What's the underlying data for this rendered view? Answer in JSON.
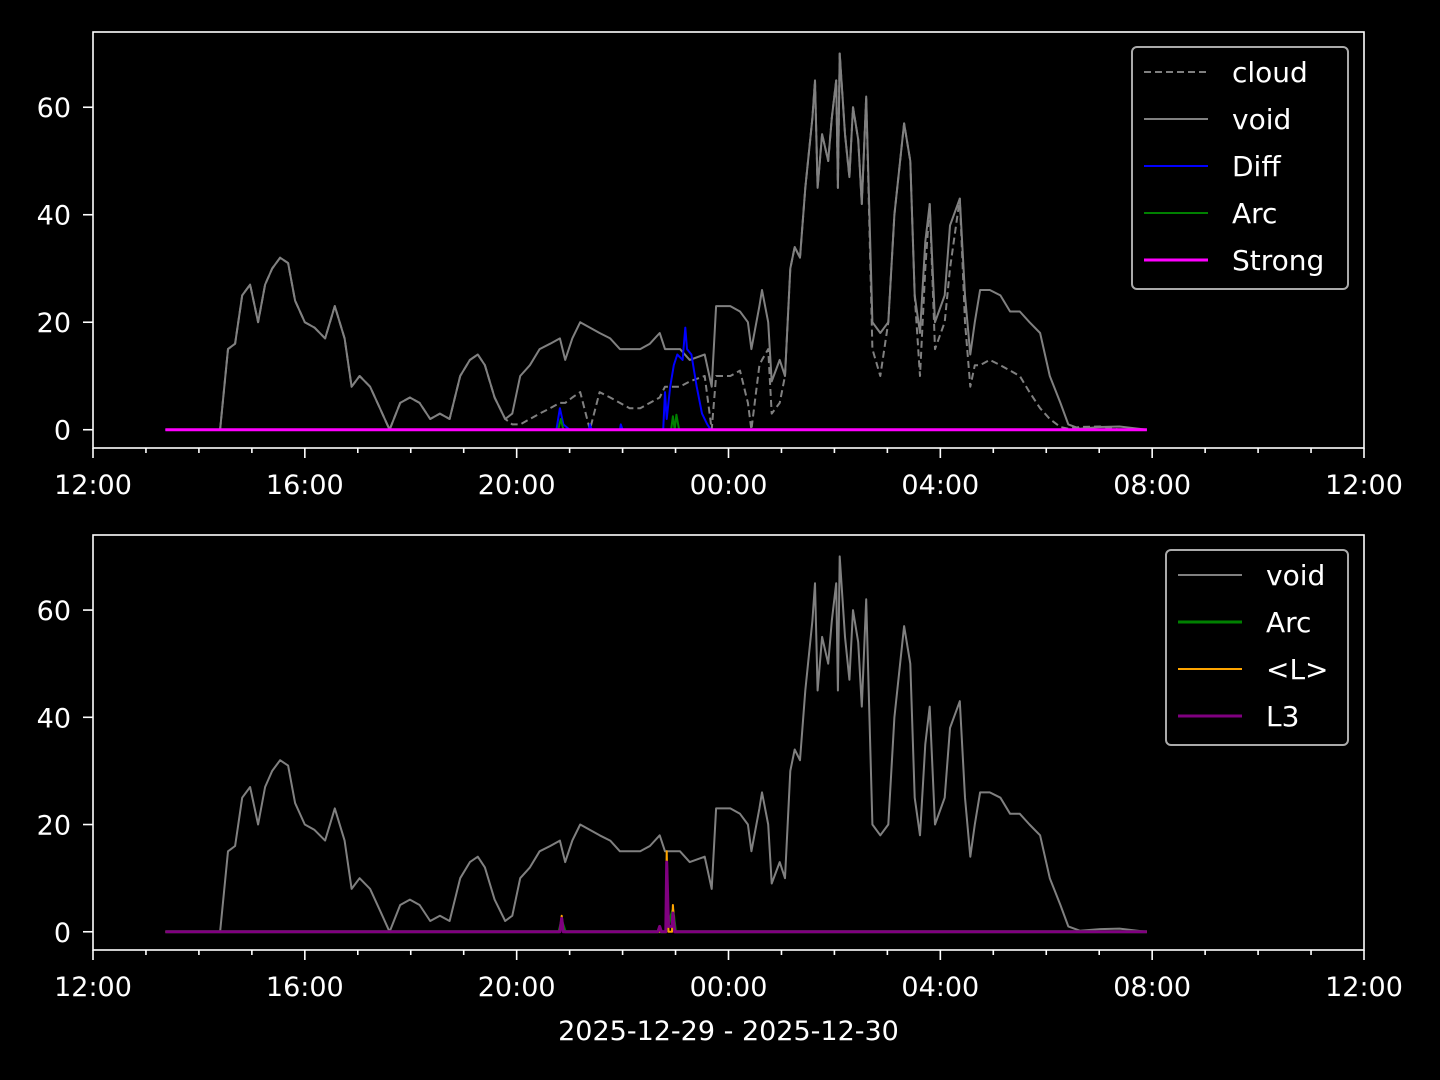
{
  "chart_data": [
    {
      "type": "line",
      "xlim": [
        "2025-12-29T12:00",
        "2025-12-30T12:00"
      ],
      "ylim": [
        -3.4,
        74
      ],
      "x_ticks": [
        "12:00",
        "16:00",
        "20:00",
        "00:00",
        "04:00",
        "08:00",
        "12:00"
      ],
      "y_ticks": [
        "0",
        "20",
        "40",
        "60"
      ],
      "legend_position": "top-right",
      "series": [
        {
          "name": "cloud",
          "color": "#808080",
          "style": "dashed",
          "ref": "cloud"
        },
        {
          "name": "void",
          "color": "#808080",
          "style": "solid",
          "ref": "void"
        },
        {
          "name": "Diff",
          "color": "#0000ff",
          "style": "solid",
          "points": [
            [
              "2025-12-29T13:22",
              0
            ],
            [
              "2025-12-29T20:45",
              0
            ],
            [
              "2025-12-29T20:49",
              4
            ],
            [
              "2025-12-29T20:53",
              1
            ],
            [
              "2025-12-29T21:00",
              0
            ],
            [
              "2025-12-29T21:22",
              0
            ],
            [
              "2025-12-29T21:23",
              1
            ],
            [
              "2025-12-29T21:25",
              0
            ],
            [
              "2025-12-29T21:57",
              0
            ],
            [
              "2025-12-29T21:58",
              1
            ],
            [
              "2025-12-29T22:00",
              0
            ],
            [
              "2025-12-29T22:46",
              0
            ],
            [
              "2025-12-29T22:48",
              7
            ],
            [
              "2025-12-29T22:50",
              2
            ],
            [
              "2025-12-29T22:54",
              8
            ],
            [
              "2025-12-29T22:58",
              12
            ],
            [
              "2025-12-29T23:02",
              14
            ],
            [
              "2025-12-29T23:08",
              13
            ],
            [
              "2025-12-29T23:11",
              19
            ],
            [
              "2025-12-29T23:13",
              15
            ],
            [
              "2025-12-29T23:18",
              14
            ],
            [
              "2025-12-29T23:24",
              8
            ],
            [
              "2025-12-29T23:30",
              3
            ],
            [
              "2025-12-29T23:36",
              1
            ],
            [
              "2025-12-29T23:40",
              0
            ],
            [
              "2025-12-30T07:54",
              0
            ]
          ]
        },
        {
          "name": "Arc",
          "color": "#008000",
          "style": "solid",
          "points": [
            [
              "2025-12-29T13:22",
              0
            ],
            [
              "2025-12-29T20:47",
              0
            ],
            [
              "2025-12-29T20:50",
              2
            ],
            [
              "2025-12-29T20:53",
              0
            ],
            [
              "2025-12-29T22:55",
              0
            ],
            [
              "2025-12-29T22:57",
              2.5
            ],
            [
              "2025-12-29T22:59",
              0
            ],
            [
              "2025-12-29T23:01",
              2.8
            ],
            [
              "2025-12-29T23:04",
              0
            ],
            [
              "2025-12-30T07:54",
              0
            ]
          ]
        },
        {
          "name": "Strong",
          "color": "#ff00ff",
          "style": "solid",
          "width": 3,
          "points": [
            [
              "2025-12-29T13:22",
              0
            ],
            [
              "2025-12-30T07:54",
              0
            ]
          ]
        }
      ]
    },
    {
      "type": "line",
      "xlim": [
        "2025-12-29T12:00",
        "2025-12-30T12:00"
      ],
      "ylim": [
        -3.4,
        74
      ],
      "x_ticks": [
        "12:00",
        "16:00",
        "20:00",
        "00:00",
        "04:00",
        "08:00",
        "12:00"
      ],
      "y_ticks": [
        "0",
        "20",
        "40",
        "60"
      ],
      "xlabel": "2025-12-29 - 2025-12-30",
      "legend_position": "top-right",
      "series": [
        {
          "name": "void",
          "color": "#808080",
          "style": "solid",
          "ref": "void"
        },
        {
          "name": "Arc",
          "color": "#008000",
          "style": "solid",
          "width": 3,
          "points": [
            [
              "2025-12-29T13:22",
              0
            ],
            [
              "2025-12-29T20:48",
              0
            ],
            [
              "2025-12-29T20:51",
              2
            ],
            [
              "2025-12-29T20:55",
              0
            ],
            [
              "2025-12-29T22:49",
              0
            ],
            [
              "2025-12-29T22:57",
              4
            ],
            [
              "2025-12-29T23:00",
              0
            ],
            [
              "2025-12-30T07:54",
              0
            ]
          ]
        },
        {
          "name": "<L>",
          "color": "#ffa500",
          "style": "solid",
          "points": [
            [
              "2025-12-29T13:22",
              0
            ],
            [
              "2025-12-29T20:49",
              0
            ],
            [
              "2025-12-29T20:51",
              3
            ],
            [
              "2025-12-29T20:53",
              0
            ],
            [
              "2025-12-29T22:49",
              0
            ],
            [
              "2025-12-29T22:50",
              15
            ],
            [
              "2025-12-29T22:52",
              0
            ],
            [
              "2025-12-29T22:56",
              0
            ],
            [
              "2025-12-29T22:57",
              5
            ],
            [
              "2025-12-29T22:59",
              0
            ],
            [
              "2025-12-30T07:54",
              0
            ]
          ]
        },
        {
          "name": "L3",
          "color": "#800080",
          "style": "solid",
          "width": 3,
          "points": [
            [
              "2025-12-29T13:22",
              0
            ],
            [
              "2025-12-29T20:49",
              0
            ],
            [
              "2025-12-29T20:51",
              2.5
            ],
            [
              "2025-12-29T20:53",
              0
            ],
            [
              "2025-12-29T22:40",
              0
            ],
            [
              "2025-12-29T22:42",
              1
            ],
            [
              "2025-12-29T22:44",
              0
            ],
            [
              "2025-12-29T22:49",
              0
            ],
            [
              "2025-12-29T22:50",
              13
            ],
            [
              "2025-12-29T22:52",
              1
            ],
            [
              "2025-12-29T22:56",
              1
            ],
            [
              "2025-12-29T22:57",
              3.5
            ],
            [
              "2025-12-29T22:59",
              0
            ],
            [
              "2025-12-30T07:54",
              0
            ]
          ]
        }
      ]
    }
  ],
  "shared_series": {
    "times": [
      "2025-12-29T13:22",
      "2025-12-29T14:24",
      "2025-12-29T14:33",
      "2025-12-29T14:41",
      "2025-12-29T14:49",
      "2025-12-29T14:58",
      "2025-12-29T15:07",
      "2025-12-29T15:15",
      "2025-12-29T15:23",
      "2025-12-29T15:32",
      "2025-12-29T15:41",
      "2025-12-29T15:49",
      "2025-12-29T16:00",
      "2025-12-29T16:11",
      "2025-12-29T16:23",
      "2025-12-29T16:34",
      "2025-12-29T16:45",
      "2025-12-29T16:53",
      "2025-12-29T17:02",
      "2025-12-29T17:14",
      "2025-12-29T17:25",
      "2025-12-29T17:36",
      "2025-12-29T17:48",
      "2025-12-29T17:59",
      "2025-12-29T18:10",
      "2025-12-29T18:22",
      "2025-12-29T18:33",
      "2025-12-29T18:44",
      "2025-12-29T18:56",
      "2025-12-29T19:07",
      "2025-12-29T19:16",
      "2025-12-29T19:24",
      "2025-12-29T19:35",
      "2025-12-29T19:47",
      "2025-12-29T19:55",
      "2025-12-29T20:04",
      "2025-12-29T20:15",
      "2025-12-29T20:26",
      "2025-12-29T20:38",
      "2025-12-29T20:49",
      "2025-12-29T20:55",
      "2025-12-29T21:03",
      "2025-12-29T21:12",
      "2025-12-29T21:23",
      "2025-12-29T21:34",
      "2025-12-29T21:46",
      "2025-12-29T21:57",
      "2025-12-29T22:08",
      "2025-12-29T22:20",
      "2025-12-29T22:31",
      "2025-12-29T22:42",
      "2025-12-29T22:48",
      "2025-12-29T23:05",
      "2025-12-29T23:16",
      "2025-12-29T23:33",
      "2025-12-29T23:41",
      "2025-12-29T23:46",
      "2025-12-30T00:02",
      "2025-12-30T00:13",
      "2025-12-30T00:22",
      "2025-12-30T00:26",
      "2025-12-30T00:35",
      "2025-12-30T00:38",
      "2025-12-30T00:45",
      "2025-12-30T00:49",
      "2025-12-30T00:58",
      "2025-12-30T01:04",
      "2025-12-30T01:10",
      "2025-12-30T01:15",
      "2025-12-30T01:21",
      "2025-12-30T01:27",
      "2025-12-30T01:35",
      "2025-12-30T01:38",
      "2025-12-30T01:41",
      "2025-12-30T01:46",
      "2025-12-30T01:53",
      "2025-12-30T01:57",
      "2025-12-30T02:02",
      "2025-12-30T02:04",
      "2025-12-30T02:06",
      "2025-12-30T02:12",
      "2025-12-30T02:17",
      "2025-12-30T02:21",
      "2025-12-30T02:27",
      "2025-12-30T02:31",
      "2025-12-30T02:36",
      "2025-12-30T02:43",
      "2025-12-30T02:52",
      "2025-12-30T03:01",
      "2025-12-30T03:08",
      "2025-12-30T03:19",
      "2025-12-30T03:26",
      "2025-12-30T03:31",
      "2025-12-30T03:37",
      "2025-12-30T03:43",
      "2025-12-30T03:48",
      "2025-12-30T03:54",
      "2025-12-30T04:05",
      "2025-12-30T04:11",
      "2025-12-30T04:22",
      "2025-12-30T04:28",
      "2025-12-30T04:34",
      "2025-12-30T04:39",
      "2025-12-30T04:45",
      "2025-12-30T04:56",
      "2025-12-30T05:08",
      "2025-12-30T05:19",
      "2025-12-30T05:30",
      "2025-12-30T05:41",
      "2025-12-30T05:53",
      "2025-12-30T06:04",
      "2025-12-30T06:16",
      "2025-12-30T06:25",
      "2025-12-30T06:38",
      "2025-12-30T07:01",
      "2025-12-30T07:23",
      "2025-12-30T07:54"
    ],
    "void": [
      0,
      0,
      15,
      16,
      25,
      27,
      20,
      27,
      30,
      32,
      31,
      24,
      20,
      19,
      17,
      23,
      17,
      8,
      10,
      8,
      4,
      0,
      5,
      6,
      5,
      2,
      3,
      2,
      10,
      13,
      14,
      12,
      6,
      2,
      3,
      10,
      12,
      15,
      16,
      17,
      13,
      17,
      20,
      19,
      18,
      17,
      15,
      15,
      15,
      16,
      18,
      15,
      15,
      13,
      14,
      8,
      23,
      23,
      22,
      20,
      15,
      23,
      26,
      20,
      9,
      13,
      10,
      30,
      34,
      32,
      45,
      58,
      65,
      45,
      55,
      50,
      58,
      65,
      45,
      70,
      55,
      47,
      60,
      54,
      42,
      62,
      20,
      18,
      20,
      40,
      57,
      50,
      25,
      18,
      35,
      42,
      20,
      25,
      38,
      43,
      25,
      14,
      20,
      26,
      26,
      25,
      22,
      22,
      20,
      18,
      10,
      5,
      1,
      0.2,
      0.5,
      0.6,
      0
    ],
    "cloud": [
      0,
      0,
      15,
      16,
      25,
      27,
      20,
      27,
      30,
      32,
      31,
      24,
      20,
      19,
      17,
      23,
      17,
      8,
      10,
      8,
      4,
      0,
      5,
      6,
      5,
      2,
      3,
      2,
      10,
      13,
      14,
      12,
      6,
      2,
      1,
      1,
      2,
      3,
      4,
      5,
      5,
      6,
      7,
      0,
      7,
      6,
      5,
      4,
      4,
      5,
      6,
      8,
      8,
      9,
      10,
      0,
      10,
      10,
      11,
      5,
      0,
      12,
      13,
      15,
      3,
      5,
      10,
      30,
      34,
      32,
      45,
      58,
      65,
      45,
      55,
      50,
      58,
      65,
      45,
      70,
      55,
      47,
      60,
      54,
      42,
      62,
      15,
      10,
      20,
      40,
      57,
      50,
      25,
      10,
      30,
      42,
      15,
      20,
      30,
      43,
      20,
      8,
      12,
      12,
      13,
      12,
      11,
      10,
      7,
      4,
      2,
      0.5,
      0.2,
      0.5,
      0.6,
      0
    ]
  }
}
